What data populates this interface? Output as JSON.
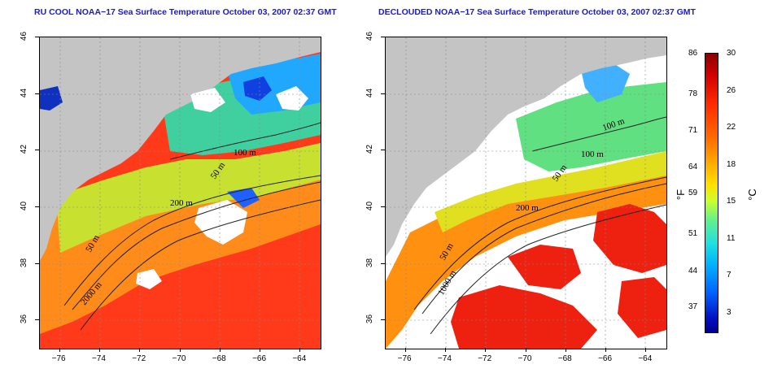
{
  "titles": {
    "left": "RU COOL NOAA−17 Sea Surface Temperature October 03, 2007 02:37 GMT",
    "right": "DECLOUDED NOAA−17 Sea Surface Temperature October 03, 2007 02:37 GMT"
  },
  "axes": {
    "x_ticks": [
      "−76",
      "−74",
      "−72",
      "−70",
      "−68",
      "−66",
      "−64"
    ],
    "y_ticks": [
      "46",
      "44",
      "42",
      "40",
      "38",
      "36"
    ],
    "lon_range": [
      -77,
      -63
    ],
    "lat_range": [
      35,
      46
    ]
  },
  "contour_labels": {
    "left": [
      "100 m",
      "50 m",
      "200 m",
      "50 m",
      "2000 m"
    ],
    "right": [
      "100 m",
      "100 m",
      "50 m",
      "200 m",
      "50 m",
      "1000 m"
    ]
  },
  "colorbar": {
    "fahrenheit": [
      "86",
      "78",
      "71",
      "64",
      "59",
      "51",
      "44",
      "37"
    ],
    "celsius": [
      "30",
      "26",
      "22",
      "18",
      "15",
      "11",
      "7",
      "3"
    ],
    "unit_f": "°F",
    "unit_c": "°C"
  }
}
